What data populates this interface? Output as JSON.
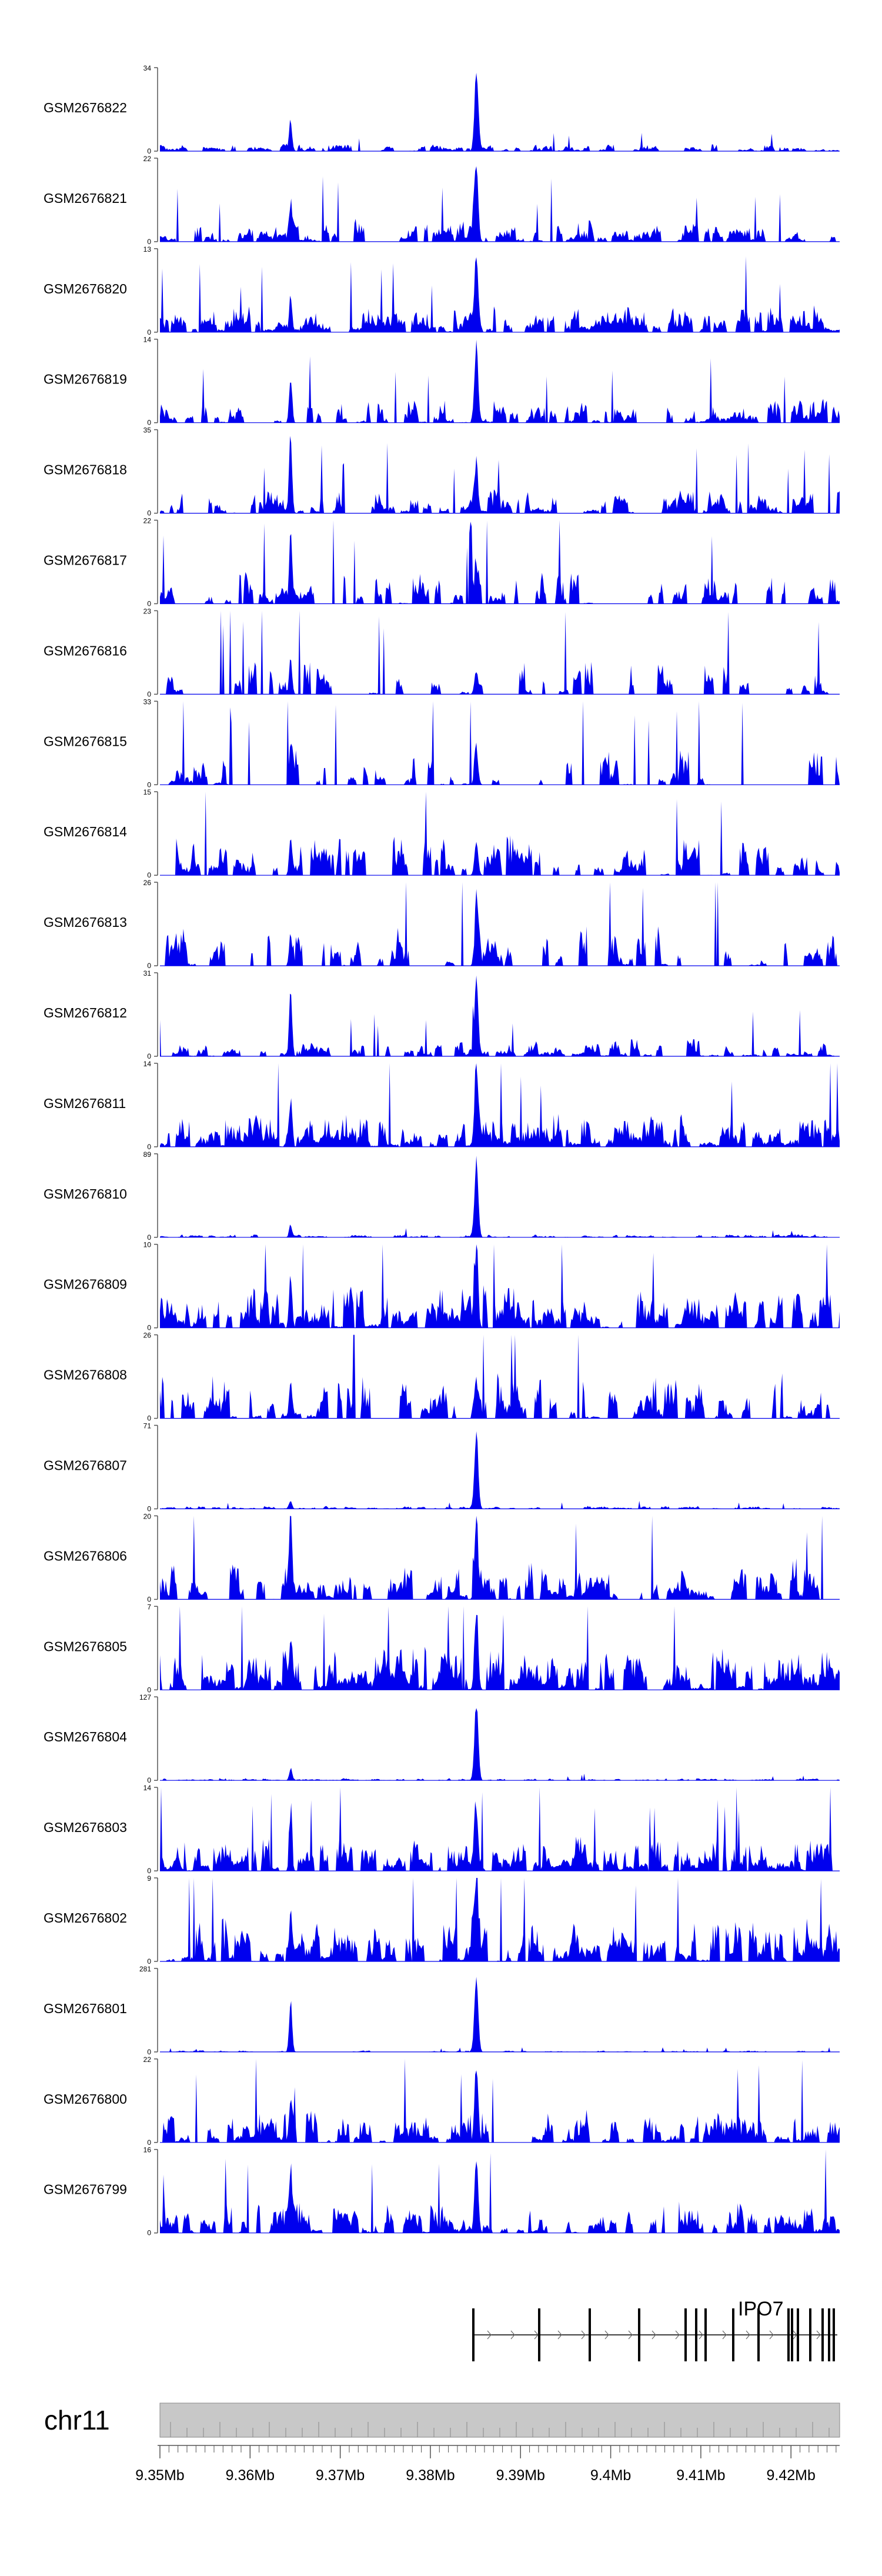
{
  "tracks": [
    {
      "sample": "GSM2676822",
      "ymax": "34",
      "ymin": "0"
    },
    {
      "sample": "GSM2676821",
      "ymax": "22",
      "ymin": "0"
    },
    {
      "sample": "GSM2676820",
      "ymax": "13",
      "ymin": "0"
    },
    {
      "sample": "GSM2676819",
      "ymax": "14",
      "ymin": "0"
    },
    {
      "sample": "GSM2676818",
      "ymax": "35",
      "ymin": "0"
    },
    {
      "sample": "GSM2676817",
      "ymax": "22",
      "ymin": "0"
    },
    {
      "sample": "GSM2676816",
      "ymax": "23",
      "ymin": "0"
    },
    {
      "sample": "GSM2676815",
      "ymax": "33",
      "ymin": "0"
    },
    {
      "sample": "GSM2676814",
      "ymax": "15",
      "ymin": "0"
    },
    {
      "sample": "GSM2676813",
      "ymax": "26",
      "ymin": "0"
    },
    {
      "sample": "GSM2676812",
      "ymax": "31",
      "ymin": "0"
    },
    {
      "sample": "GSM2676811",
      "ymax": "14",
      "ymin": "0"
    },
    {
      "sample": "GSM2676810",
      "ymax": "89",
      "ymin": "0"
    },
    {
      "sample": "GSM2676809",
      "ymax": "10",
      "ymin": "0"
    },
    {
      "sample": "GSM2676808",
      "ymax": "26",
      "ymin": "0"
    },
    {
      "sample": "GSM2676807",
      "ymax": "71",
      "ymin": "0"
    },
    {
      "sample": "GSM2676806",
      "ymax": "20",
      "ymin": "0"
    },
    {
      "sample": "GSM2676805",
      "ymax": "7",
      "ymin": "0"
    },
    {
      "sample": "GSM2676804",
      "ymax": "127",
      "ymin": "0"
    },
    {
      "sample": "GSM2676803",
      "ymax": "14",
      "ymin": "0"
    },
    {
      "sample": "GSM2676802",
      "ymax": "9",
      "ymin": "0"
    },
    {
      "sample": "GSM2676801",
      "ymax": "281",
      "ymin": "0"
    },
    {
      "sample": "GSM2676800",
      "ymax": "22",
      "ymin": "0"
    },
    {
      "sample": "GSM2676799",
      "ymax": "16",
      "ymin": "0"
    }
  ],
  "gene": {
    "name": "IPO7"
  },
  "chromosome": {
    "name": "chr11"
  },
  "axis": {
    "ticks": [
      {
        "mb": 9.35,
        "label": "9.35Mb"
      },
      {
        "mb": 9.36,
        "label": "9.36Mb"
      },
      {
        "mb": 9.37,
        "label": "9.37Mb"
      },
      {
        "mb": 9.38,
        "label": "9.38Mb"
      },
      {
        "mb": 9.39,
        "label": "9.39Mb"
      },
      {
        "mb": 9.4,
        "label": "9.4Mb"
      },
      {
        "mb": 9.41,
        "label": "9.41Mb"
      },
      {
        "mb": 9.42,
        "label": "9.42Mb"
      }
    ]
  },
  "colors": {
    "signal": "#0000ee",
    "ideogram": "#c8c8c8",
    "axis": "#555555",
    "gene": "#000000"
  }
}
